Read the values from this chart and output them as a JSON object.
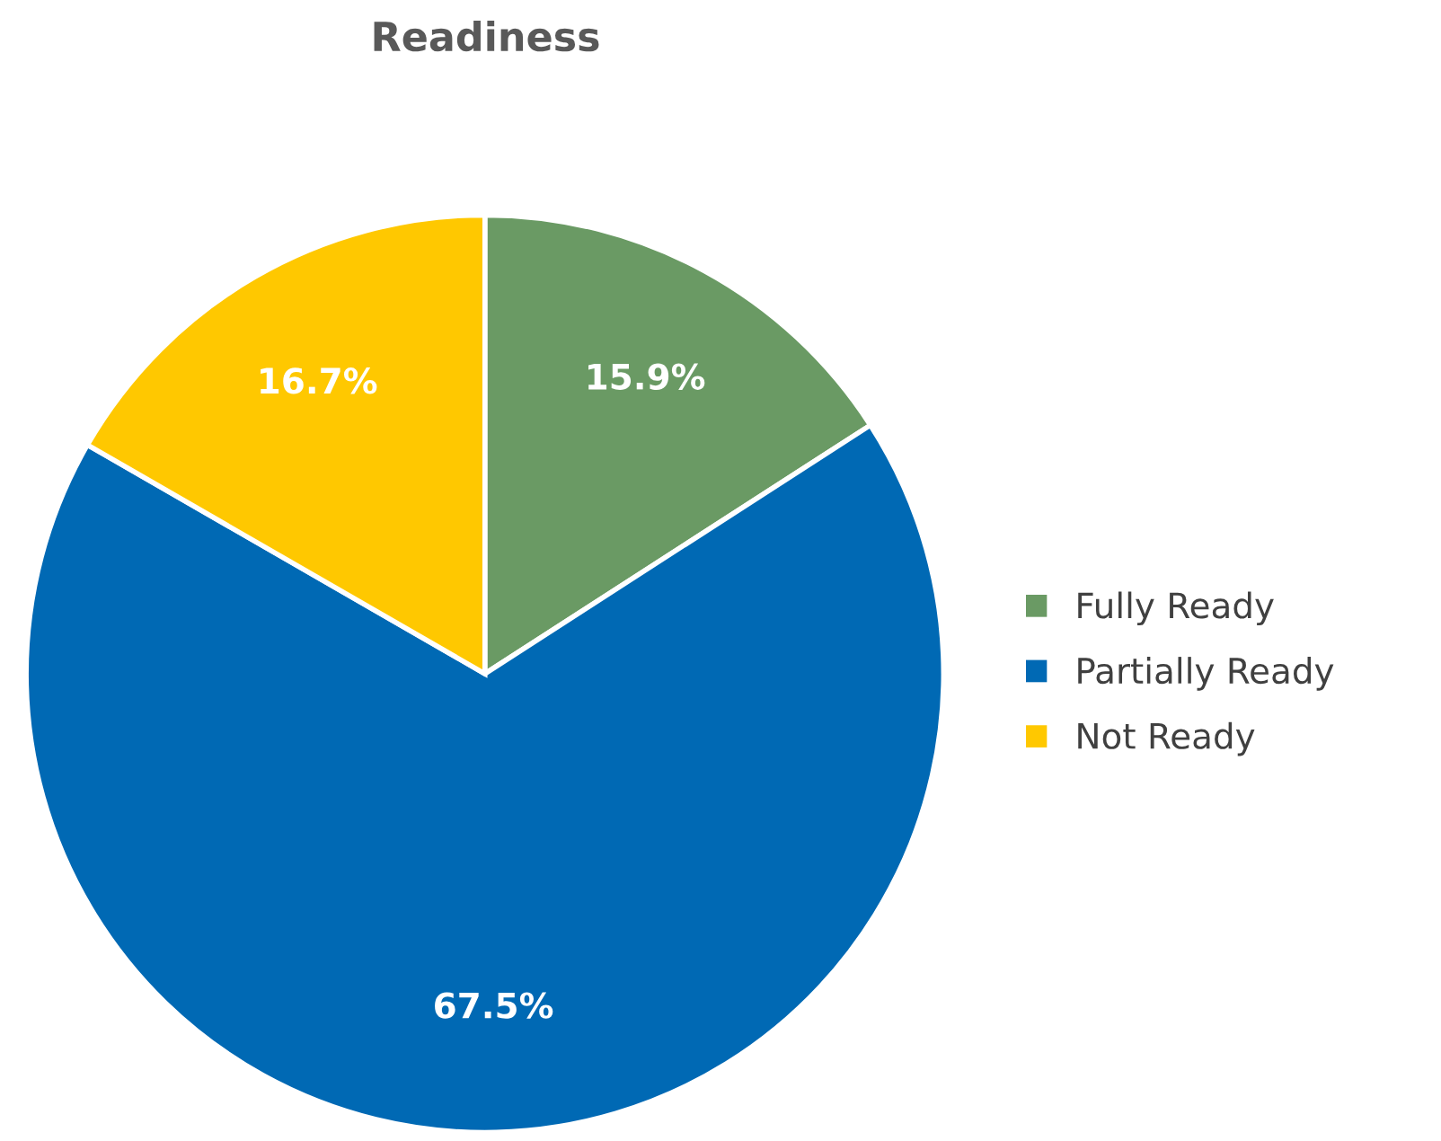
{
  "chart_data": {
    "type": "pie",
    "title": "Readiness",
    "categories": [
      "Fully Ready",
      "Partially Ready",
      "Not Ready"
    ],
    "values": [
      15.9,
      67.5,
      16.7
    ],
    "colors": [
      "#6a9a64",
      "#0069b4",
      "#ffc800"
    ],
    "value_labels": [
      "15.9%",
      "67.5%",
      "16.7%"
    ],
    "legend": "right"
  }
}
